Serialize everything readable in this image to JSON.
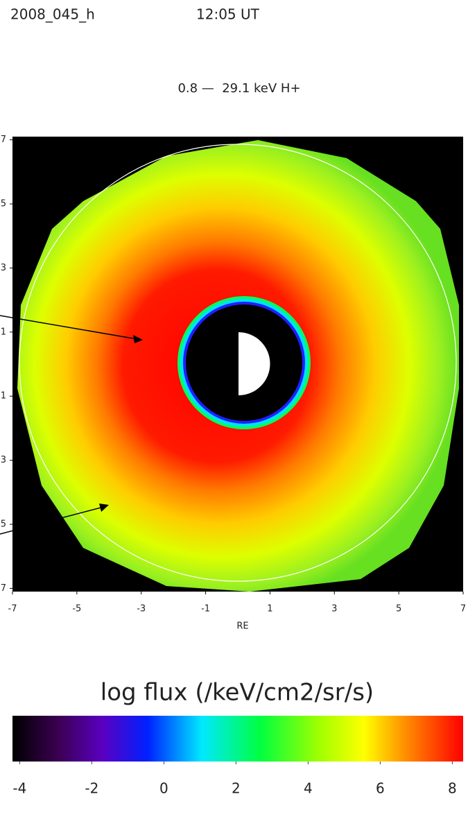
{
  "header": {
    "left": "2008_045_h",
    "right": "12:05 UT"
  },
  "chart_data": {
    "type": "heatmap",
    "title": "0.8 —  29.1 keV H+",
    "x_label": "RE",
    "xlim": [
      -7,
      7
    ],
    "xticks": [
      -7,
      -5,
      -3,
      -1,
      1,
      3,
      5,
      7
    ],
    "ylim": [
      -7.1,
      7.1
    ],
    "yticks": [
      7,
      5,
      3,
      1,
      {
        "value": -1,
        "label": "1"
      },
      {
        "value": -3,
        "label": "3"
      },
      {
        "value": -5,
        "label": "5"
      },
      {
        "value": -7,
        "label": "7"
      }
    ],
    "colorbar": {
      "label": "log flux (/keV/cm2/sr/s)",
      "lim": [
        -4.2,
        8.3
      ],
      "ticks": [
        -4,
        -2,
        0,
        2,
        4,
        6,
        8
      ]
    }
  }
}
